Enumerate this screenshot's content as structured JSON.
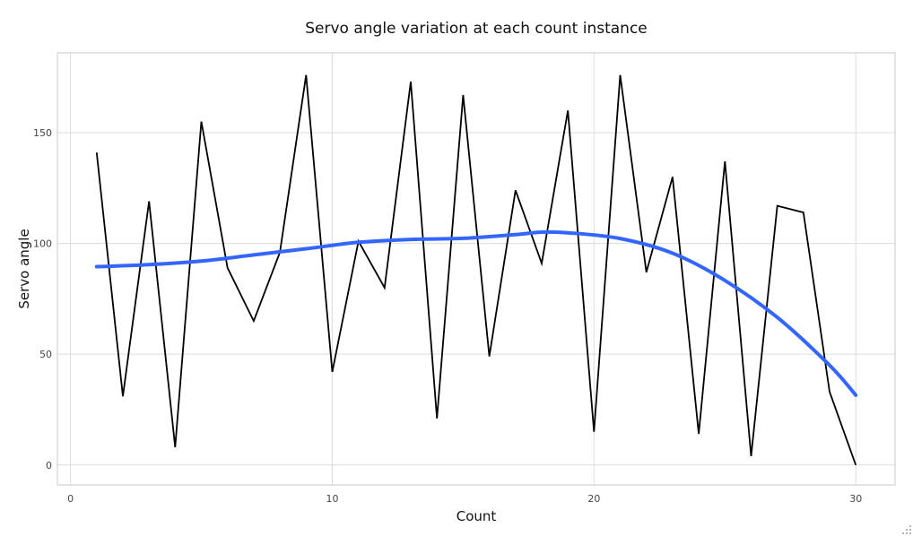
{
  "chart_data": {
    "type": "line",
    "title": "Servo angle variation at each count instance",
    "xlabel": "Count",
    "ylabel": "Servo angle",
    "xlim": [
      -0.5,
      31.5
    ],
    "ylim": [
      -9,
      186
    ],
    "x_ticks": [
      0,
      10,
      20,
      30
    ],
    "y_ticks": [
      0,
      50,
      100,
      150
    ],
    "grid": true,
    "legend": "none",
    "colors": {
      "raw": "#000000",
      "smooth": "#3366ff",
      "grid": "#dcdcdc",
      "frame": "#c8c8c8"
    },
    "series": [
      {
        "x": [
          1,
          2,
          3,
          4,
          5,
          6,
          7,
          8,
          9,
          10,
          11,
          12,
          13,
          14,
          15,
          16,
          17,
          18,
          19,
          20,
          21,
          22,
          23,
          24,
          25,
          26,
          27,
          28,
          29,
          30
        ],
        "values": [
          141,
          31,
          119,
          8,
          155,
          89,
          65,
          96,
          176,
          42,
          101,
          80,
          173,
          21,
          167,
          49,
          124,
          91,
          160,
          15,
          176,
          87,
          130,
          14,
          137,
          4,
          117,
          114,
          33,
          0
        ]
      },
      {
        "x": [
          1,
          3,
          5,
          7,
          9,
          11,
          13,
          15,
          17,
          18,
          19,
          21,
          23,
          25,
          27,
          29,
          30
        ],
        "values": [
          89.5,
          90.4,
          92,
          94.8,
          97.6,
          100.5,
          101.8,
          102.3,
          104,
          105.1,
          104.8,
          102.2,
          95.6,
          83.3,
          66.6,
          45,
          31.5
        ]
      }
    ]
  }
}
